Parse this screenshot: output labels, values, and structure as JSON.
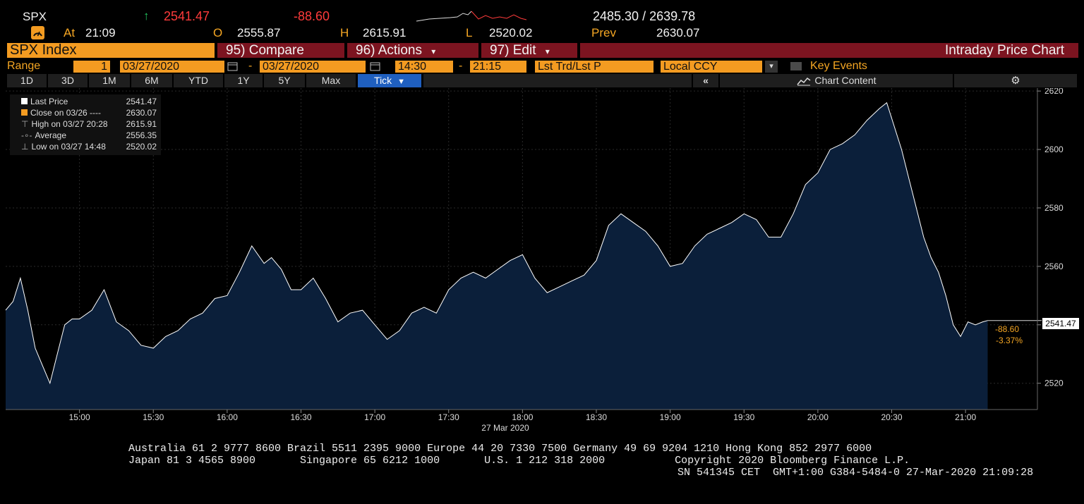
{
  "quote": {
    "ticker": "SPX",
    "arrow": "↑",
    "last": "2541.47",
    "change": "-88.60",
    "range_text": "2485.30 / 2639.78",
    "at_label": "At",
    "at_time": "21:09",
    "open_label": "O",
    "open": "2555.87",
    "high_label": "H",
    "high": "2615.91",
    "low_label": "L",
    "low": "2520.02",
    "prev_label": "Prev",
    "prev": "2630.07"
  },
  "menu": {
    "security": "SPX Index",
    "compare": "95) Compare",
    "actions": "96) Actions",
    "edit": "97) Edit",
    "title": "Intraday Price Chart"
  },
  "controls": {
    "range_label": "Range",
    "range_num": "1",
    "start_date": "03/27/2020",
    "end_date": "03/27/2020",
    "start_time": "14:30",
    "end_time": "21:15",
    "price_type": "Lst Trd/Lst P",
    "currency": "Local CCY",
    "key_events": "Key Events",
    "dash": "-"
  },
  "tabs": [
    "1D",
    "3D",
    "1M",
    "6M",
    "YTD",
    "1Y",
    "5Y",
    "Max"
  ],
  "active_tab": "Tick",
  "chart_content_label": "Chart Content",
  "legend": [
    {
      "label": "Last Price",
      "value": "2541.47"
    },
    {
      "label": "Close on 03/26 ----",
      "value": "2630.07"
    },
    {
      "label": "High on 03/27 20:28",
      "value": "2615.91"
    },
    {
      "label": "Average",
      "value": "2556.35"
    },
    {
      "label": "Low on 03/27 14:48",
      "value": "2520.02"
    }
  ],
  "right_tags": {
    "last": "2541.47",
    "change": "-88.60",
    "pct": "-3.37%"
  },
  "colors": {
    "area_fill": "#0b1f3a",
    "line": "#ffffff",
    "accent_orange": "#f39b21",
    "maroon": "#7c1420",
    "negative": "#ff3b3b"
  },
  "chart_data": {
    "type": "line",
    "x_ticks": [
      "15:00",
      "15:30",
      "16:00",
      "16:30",
      "17:00",
      "17:30",
      "18:00",
      "18:30",
      "19:00",
      "19:30",
      "20:00",
      "20:30",
      "21:00"
    ],
    "xlabel": "27 Mar 2020",
    "y_ticks": [
      2520,
      2540,
      2560,
      2580,
      2600,
      2620
    ],
    "ylim": [
      2511,
      2621
    ],
    "x_range": [
      "14:30",
      "21:10"
    ],
    "series": [
      {
        "name": "Last Price",
        "x": [
          "14:30",
          "14:33",
          "14:36",
          "14:39",
          "14:42",
          "14:45",
          "14:48",
          "14:51",
          "14:54",
          "14:57",
          "15:00",
          "15:05",
          "15:10",
          "15:15",
          "15:20",
          "15:25",
          "15:30",
          "15:35",
          "15:40",
          "15:45",
          "15:50",
          "15:55",
          "16:00",
          "16:05",
          "16:10",
          "16:15",
          "16:18",
          "16:22",
          "16:26",
          "16:30",
          "16:35",
          "16:40",
          "16:45",
          "16:50",
          "16:55",
          "17:00",
          "17:05",
          "17:10",
          "17:15",
          "17:20",
          "17:25",
          "17:30",
          "17:35",
          "17:40",
          "17:45",
          "17:50",
          "17:55",
          "18:00",
          "18:05",
          "18:10",
          "18:15",
          "18:20",
          "18:25",
          "18:30",
          "18:35",
          "18:40",
          "18:45",
          "18:50",
          "18:55",
          "19:00",
          "19:05",
          "19:10",
          "19:15",
          "19:20",
          "19:25",
          "19:30",
          "19:35",
          "19:40",
          "19:45",
          "19:50",
          "19:55",
          "20:00",
          "20:05",
          "20:10",
          "20:15",
          "20:20",
          "20:25",
          "20:28",
          "20:31",
          "20:34",
          "20:37",
          "20:40",
          "20:43",
          "20:46",
          "20:49",
          "20:52",
          "20:55",
          "20:58",
          "21:01",
          "21:04",
          "21:07",
          "21:09"
        ],
        "y": [
          2545,
          2548,
          2556,
          2545,
          2532,
          2526,
          2520,
          2530,
          2540,
          2542,
          2542,
          2545,
          2552,
          2541,
          2538,
          2533,
          2532,
          2536,
          2538,
          2542,
          2544,
          2549,
          2550,
          2558,
          2567,
          2561,
          2563,
          2559,
          2552,
          2552,
          2556,
          2549,
          2541,
          2544,
          2545,
          2540,
          2535,
          2538,
          2544,
          2546,
          2544,
          2552,
          2556,
          2558,
          2556,
          2559,
          2562,
          2564,
          2556,
          2551,
          2553,
          2555,
          2557,
          2562,
          2574,
          2578,
          2575,
          2572,
          2567,
          2560,
          2561,
          2567,
          2571,
          2573,
          2575,
          2578,
          2576,
          2570,
          2570,
          2578,
          2588,
          2592,
          2600,
          2602,
          2605,
          2610,
          2614,
          2616,
          2608,
          2600,
          2590,
          2580,
          2570,
          2563,
          2558,
          2550,
          2540,
          2536,
          2541,
          2540,
          2541,
          2541.47
        ]
      }
    ],
    "reference_lines": {
      "last": 2541.47
    }
  },
  "footer": {
    "line1": "Australia 61 2 9777 8600 Brazil 5511 2395 9000 Europe 44 20 7330 7500 Germany 49 69 9204 1210 Hong Kong 852 2977 6000",
    "line2": "Japan 81 3 4565 8900       Singapore 65 6212 1000       U.S. 1 212 318 2000           Copyright 2020 Bloomberg Finance L.P.",
    "line3": "SN 541345 CET  GMT+1:00 G384-5484-0 27-Mar-2020 21:09:28"
  }
}
